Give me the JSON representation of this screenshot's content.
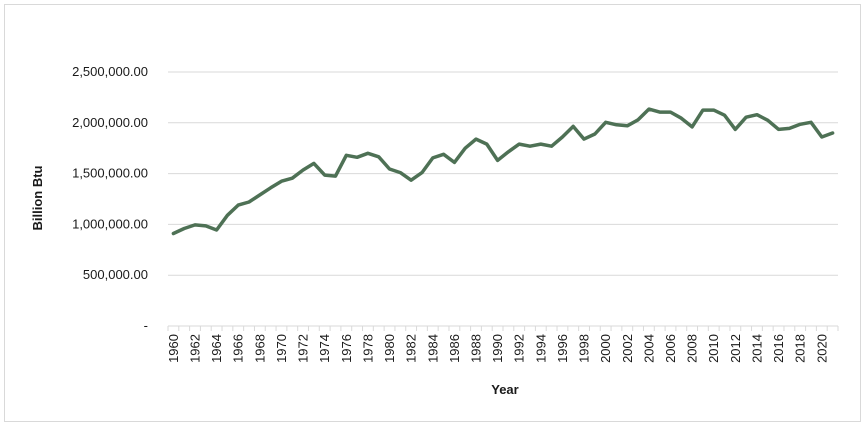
{
  "chart_data": {
    "type": "line",
    "title": "",
    "xlabel": "Year",
    "ylabel": "Billion Btu",
    "ylim": [
      0,
      2500000
    ],
    "ytick_values": [
      0,
      500000,
      1000000,
      1500000,
      2000000,
      2500000
    ],
    "ytick_labels": [
      "-",
      "500,000.00",
      "1,000,000.00",
      "1,500,000.00",
      "2,000,000.00",
      "2,500,000.00"
    ],
    "xtick_labels": [
      "1960",
      "1962",
      "1964",
      "1966",
      "1968",
      "1970",
      "1972",
      "1974",
      "1976",
      "1978",
      "1980",
      "1982",
      "1984",
      "1986",
      "1988",
      "1990",
      "1992",
      "1994",
      "1996",
      "1998",
      "2000",
      "2002",
      "2004",
      "2006",
      "2008",
      "2010",
      "2012",
      "2014",
      "2016",
      "2018",
      "2020"
    ],
    "grid": true,
    "line_color": "#4e7155",
    "x": [
      1960,
      1961,
      1962,
      1963,
      1964,
      1965,
      1966,
      1967,
      1968,
      1969,
      1970,
      1971,
      1972,
      1973,
      1974,
      1975,
      1976,
      1977,
      1978,
      1979,
      1980,
      1981,
      1982,
      1983,
      1984,
      1985,
      1986,
      1987,
      1988,
      1989,
      1990,
      1991,
      1992,
      1993,
      1994,
      1995,
      1996,
      1997,
      1998,
      1999,
      2000,
      2001,
      2002,
      2003,
      2004,
      2005,
      2006,
      2007,
      2008,
      2009,
      2010,
      2011,
      2012,
      2013,
      2014,
      2015,
      2016,
      2017,
      2018,
      2019,
      2020,
      2021
    ],
    "values": [
      910000,
      960000,
      995000,
      985000,
      945000,
      1090000,
      1190000,
      1220000,
      1290000,
      1360000,
      1425000,
      1455000,
      1535000,
      1600000,
      1485000,
      1475000,
      1680000,
      1660000,
      1700000,
      1665000,
      1545000,
      1510000,
      1435000,
      1510000,
      1655000,
      1690000,
      1610000,
      1750000,
      1840000,
      1790000,
      1630000,
      1715000,
      1790000,
      1770000,
      1790000,
      1770000,
      1860000,
      1965000,
      1840000,
      1890000,
      2005000,
      1980000,
      1970000,
      2030000,
      2135000,
      2105000,
      2105000,
      2045000,
      1960000,
      2125000,
      2125000,
      2075000,
      1935000,
      2055000,
      2080000,
      2025000,
      1935000,
      1945000,
      1985000,
      2005000,
      1860000,
      1900000
    ]
  }
}
